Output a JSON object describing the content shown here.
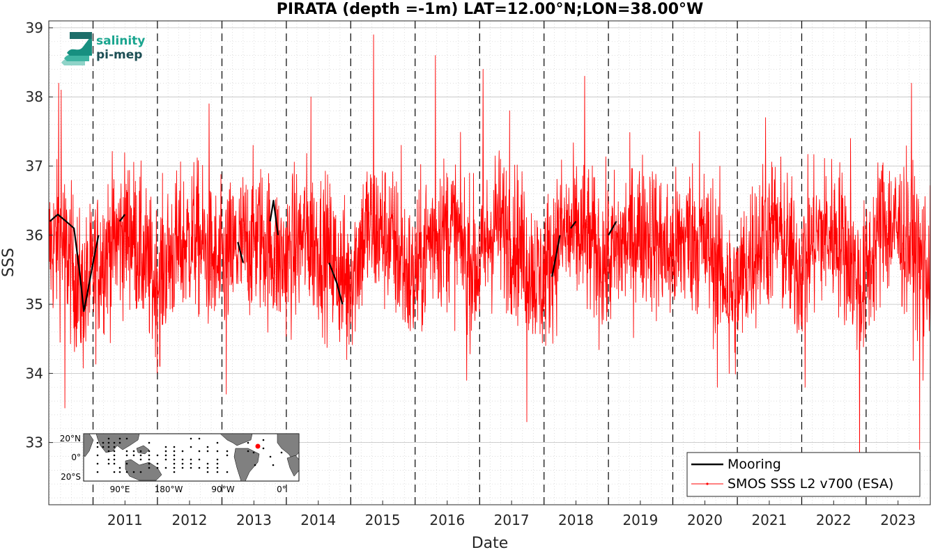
{
  "chart_data": {
    "type": "line",
    "title": "PIRATA (depth =-1m) LAT=12.00°N;LON=38.00°W",
    "xlabel": "Date",
    "ylabel": "SSS",
    "xlim": [
      "2010-04-25",
      "2023-12-31"
    ],
    "ylim": [
      32.1,
      39.1
    ],
    "x_ticks": [
      "2011",
      "2012",
      "2013",
      "2014",
      "2015",
      "2016",
      "2017",
      "2018",
      "2019",
      "2020",
      "2021",
      "2022",
      "2023"
    ],
    "y_ticks": [
      "33",
      "34",
      "35",
      "36",
      "37",
      "38",
      "39"
    ],
    "grid": true,
    "year_boundaries": [
      "2011-01-01",
      "2012-01-01",
      "2013-01-01",
      "2014-01-01",
      "2015-01-01",
      "2016-01-01",
      "2017-01-01",
      "2018-01-01",
      "2019-01-01",
      "2020-01-01",
      "2021-01-01",
      "2022-01-01",
      "2023-01-01"
    ],
    "legend_position": "bottom-right",
    "series": [
      {
        "name": "Mooring",
        "color": "#000000",
        "segments": [
          [
            [
              "2010-05-01",
              36.2
            ],
            [
              "2010-06-15",
              36.3
            ],
            [
              "2010-08-01",
              36.2
            ],
            [
              "2010-09-15",
              36.1
            ],
            [
              "2010-10-15",
              35.5
            ],
            [
              "2010-11-10",
              34.9
            ],
            [
              "2010-12-10",
              35.3
            ],
            [
              "2011-01-01",
              35.6
            ],
            [
              "2011-02-01",
              36.0
            ]
          ],
          [
            [
              "2011-06-01",
              36.2
            ],
            [
              "2011-07-01",
              36.3
            ]
          ],
          [
            [
              "2013-04-01",
              35.9
            ],
            [
              "2013-05-01",
              35.6
            ]
          ],
          [
            [
              "2013-10-01",
              36.2
            ],
            [
              "2013-10-20",
              36.5
            ],
            [
              "2013-11-15",
              36.0
            ]
          ],
          [
            [
              "2014-09-01",
              35.6
            ],
            [
              "2014-10-15",
              35.3
            ],
            [
              "2014-11-15",
              35.0
            ]
          ],
          [
            [
              "2018-02-15",
              35.4
            ],
            [
              "2018-03-10",
              35.7
            ],
            [
              "2018-04-01",
              36.0
            ]
          ],
          [
            [
              "2018-06-01",
              36.1
            ],
            [
              "2018-07-01",
              36.2
            ]
          ],
          [
            [
              "2019-01-01",
              36.0
            ],
            [
              "2019-02-15",
              36.2
            ]
          ]
        ]
      },
      {
        "name": "SMOS SSS L2 v700 (ESA)",
        "color": "#ff0000",
        "sampling": "approximately daily, 2010-04-25 to 2023-12-31",
        "baseline": [
          [
            "2010-04-25",
            35.8
          ],
          [
            "2010-07-15",
            35.9
          ],
          [
            "2010-11-01",
            35.1
          ],
          [
            "2011-03-15",
            35.8
          ],
          [
            "2011-08-01",
            36.1
          ],
          [
            "2011-12-15",
            35.3
          ],
          [
            "2012-03-15",
            35.7
          ],
          [
            "2012-08-01",
            36.0
          ],
          [
            "2012-12-10",
            35.5
          ],
          [
            "2013-04-01",
            35.8
          ],
          [
            "2013-08-01",
            36.0
          ],
          [
            "2013-12-10",
            35.6
          ],
          [
            "2014-04-15",
            36.0
          ],
          [
            "2014-08-01",
            35.8
          ],
          [
            "2014-12-15",
            35.3
          ],
          [
            "2015-04-01",
            36.1
          ],
          [
            "2015-08-01",
            36.0
          ],
          [
            "2015-12-15",
            35.3
          ],
          [
            "2016-04-01",
            36.0
          ],
          [
            "2016-08-01",
            36.1
          ],
          [
            "2016-12-15",
            35.5
          ],
          [
            "2017-04-01",
            36.2
          ],
          [
            "2017-08-01",
            35.9
          ],
          [
            "2017-12-15",
            35.3
          ],
          [
            "2018-04-01",
            36.0
          ],
          [
            "2018-08-01",
            36.0
          ],
          [
            "2018-12-15",
            35.6
          ],
          [
            "2019-04-01",
            35.9
          ],
          [
            "2019-08-01",
            36.1
          ],
          [
            "2019-12-15",
            35.7
          ],
          [
            "2020-04-01",
            36.0
          ],
          [
            "2020-08-01",
            35.8
          ],
          [
            "2020-12-15",
            35.1
          ],
          [
            "2021-04-01",
            35.8
          ],
          [
            "2021-08-01",
            36.1
          ],
          [
            "2021-12-15",
            35.5
          ],
          [
            "2022-04-01",
            36.0
          ],
          [
            "2022-08-01",
            36.0
          ],
          [
            "2022-12-10",
            35.2
          ],
          [
            "2023-04-01",
            36.2
          ],
          [
            "2023-08-01",
            36.0
          ],
          [
            "2023-12-31",
            35.5
          ]
        ],
        "spread": 0.55,
        "extremes": [
          [
            "2010-06-20",
            38.2
          ],
          [
            "2010-07-05",
            38.1
          ],
          [
            "2010-07-25",
            33.5
          ],
          [
            "2011-01-10",
            34.3
          ],
          [
            "2011-10-01",
            37.5
          ],
          [
            "2012-01-15",
            34.1
          ],
          [
            "2012-10-20",
            37.9
          ],
          [
            "2013-01-25",
            33.7
          ],
          [
            "2013-09-20",
            34.0
          ],
          [
            "2013-10-30",
            32.6
          ],
          [
            "2014-05-20",
            38.0
          ],
          [
            "2014-12-10",
            34.2
          ],
          [
            "2015-05-10",
            38.9
          ],
          [
            "2015-10-15",
            37.3
          ],
          [
            "2016-04-25",
            38.6
          ],
          [
            "2016-10-20",
            33.9
          ],
          [
            "2017-01-20",
            38.4
          ],
          [
            "2017-06-20",
            37.8
          ],
          [
            "2017-09-25",
            33.3
          ],
          [
            "2017-10-25",
            33.6
          ],
          [
            "2018-08-20",
            38.3
          ],
          [
            "2020-06-01",
            37.5
          ],
          [
            "2020-09-10",
            33.8
          ],
          [
            "2020-11-15",
            34.0
          ],
          [
            "2021-06-10",
            37.7
          ],
          [
            "2022-01-20",
            33.8
          ],
          [
            "2022-10-05",
            37.4
          ],
          [
            "2022-11-25",
            32.5
          ],
          [
            "2023-09-15",
            38.2
          ],
          [
            "2023-11-01",
            32.9
          ],
          [
            "2023-11-20",
            33.9
          ]
        ]
      }
    ]
  },
  "legend": {
    "items": [
      {
        "label": "Mooring",
        "color": "#000000"
      },
      {
        "label": "SMOS SSS L2 v700 (ESA)",
        "color": "#ff0000"
      }
    ]
  },
  "logo": {
    "line1": "salinity",
    "line2": "pi-mep",
    "color1": "#1aa58f",
    "color2": "#1c4e54"
  },
  "inset_map": {
    "lat_labels": [
      "20°N",
      "0°",
      "20°S"
    ],
    "lon_labels": [
      "90°E",
      "180°W",
      "90°W",
      "0°"
    ],
    "marker_color": "#ff0000",
    "land_color": "#808080"
  }
}
